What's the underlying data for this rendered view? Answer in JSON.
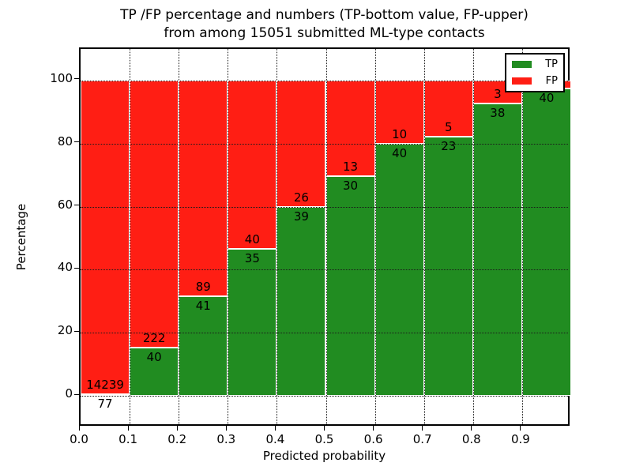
{
  "title": {
    "line1": "TP /FP percentage and numbers (TP-bottom value, FP-upper)",
    "line2": "from among 15051 submitted ML-type contacts"
  },
  "axes": {
    "xlabel": "Predicted probability",
    "ylabel": "Percentage",
    "x_ticks": [
      "0.0",
      "0.1",
      "0.2",
      "0.3",
      "0.4",
      "0.5",
      "0.6",
      "0.7",
      "0.8",
      "0.9"
    ],
    "y_ticks": [
      "0",
      "20",
      "40",
      "60",
      "80",
      "100"
    ]
  },
  "legend": {
    "items": [
      {
        "label": "TP",
        "color": "#218c21"
      },
      {
        "label": "FP",
        "color": "#ff1e14"
      }
    ]
  },
  "chart_data": {
    "type": "bar",
    "subtype": "stacked_percentage",
    "title": "TP /FP percentage and numbers (TP-bottom value, FP-upper) from among 15051 submitted ML-type contacts",
    "xlabel": "Predicted probability",
    "ylabel": "Percentage",
    "xlim": [
      0.0,
      1.0
    ],
    "ylim": [
      -10,
      110
    ],
    "grid": true,
    "grid_style": "dotted",
    "legend_position": "upper right",
    "total_submitted": 15051,
    "categories": [
      "0.0-0.1",
      "0.1-0.2",
      "0.2-0.3",
      "0.3-0.4",
      "0.4-0.5",
      "0.5-0.6",
      "0.6-0.7",
      "0.7-0.8",
      "0.8-0.9",
      "0.9-1.0"
    ],
    "series": [
      {
        "name": "TP",
        "color": "#218c21",
        "counts": [
          77,
          40,
          41,
          35,
          39,
          30,
          40,
          23,
          38,
          40
        ],
        "labels": [
          "77",
          "40",
          "41",
          "35",
          "39",
          "30",
          "40",
          "23",
          "38",
          "40"
        ],
        "pct": [
          0.54,
          15.27,
          31.54,
          46.67,
          60.0,
          69.77,
          80.0,
          82.14,
          92.68,
          97.56
        ]
      },
      {
        "name": "FP",
        "color": "#ff1e14",
        "counts": [
          14239,
          222,
          89,
          40,
          26,
          13,
          10,
          5,
          3,
          null
        ],
        "labels": [
          "14239",
          "222",
          "89",
          "40",
          "26",
          "13",
          "10",
          "5",
          "3",
          ""
        ],
        "pct": [
          99.46,
          84.73,
          68.46,
          53.33,
          40.0,
          30.23,
          20.0,
          17.86,
          7.32,
          2.44
        ]
      }
    ]
  }
}
